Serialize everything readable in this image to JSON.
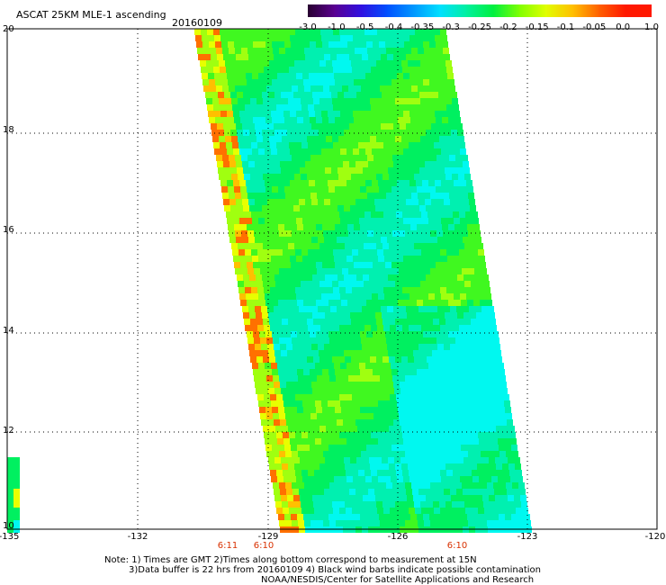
{
  "header": {
    "title": "ASCAT 25KM MLE-1 ascending",
    "date": "20160109"
  },
  "colorbar": {
    "labels": [
      "-3.0",
      "-1.0",
      "-0.5",
      "-0.4",
      "-0.35",
      "-0.3",
      "-0.25",
      "-0.2",
      "-0.15",
      "-0.1",
      "-0.05",
      "0.0",
      "1.0"
    ],
    "colors": [
      "#280030",
      "#5a0090",
      "#3010e0",
      "#0050ff",
      "#0098ff",
      "#00e0ff",
      "#00f0a0",
      "#00f040",
      "#80ff00",
      "#e0ff00",
      "#ffc000",
      "#ff6000",
      "#ff1800"
    ]
  },
  "axes": {
    "lat_labels": [
      "20",
      "18",
      "16",
      "14",
      "12",
      "10"
    ],
    "lon_labels": [
      "-135",
      "-132",
      "-129",
      "-126",
      "-123",
      "-120"
    ]
  },
  "times": {
    "t1": "6:11",
    "t2": "6:10",
    "t3": "6:10"
  },
  "notes": {
    "line1": "Note: 1) Times are GMT 2)Times along bottom correspond to measurement at 15N",
    "line2": "3)Data buffer is 22 hrs from 20160109 4) Black wind barbs indicate possible contamination",
    "line3": "NOAA/NESDIS/Center for Satellite Applications and Research"
  }
}
